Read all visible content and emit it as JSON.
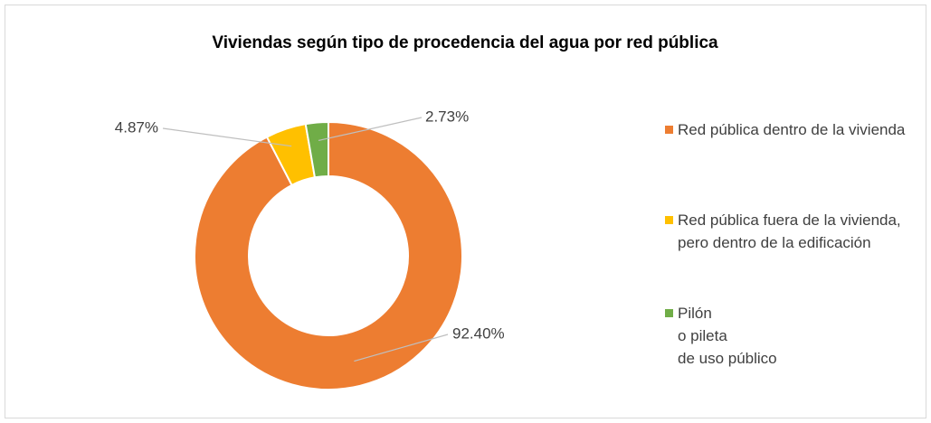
{
  "chart_data": {
    "type": "donut",
    "title": "Viviendas según tipo de procedencia del agua por red pública",
    "categories": [
      "Red pública dentro de la vivienda",
      "Red pública fuera de la vivienda, pero dentro de la edificación",
      "Pilón\no pileta\nde uso público"
    ],
    "values": [
      92.4,
      4.87,
      2.73
    ],
    "value_labels": [
      "92.40%",
      "4.87%",
      "2.73%"
    ],
    "colors": [
      "#ED7D31",
      "#FFC000",
      "#70AD47"
    ],
    "legend": "right"
  }
}
